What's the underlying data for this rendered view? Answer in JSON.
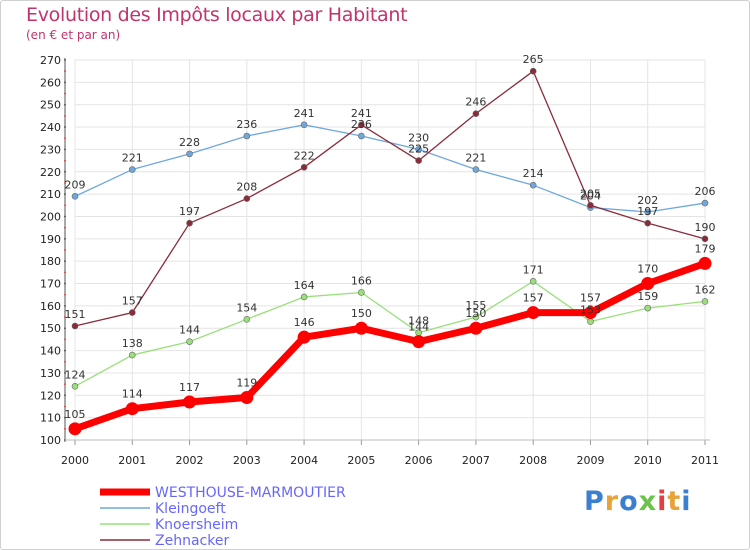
{
  "title": "Evolution des Impôts locaux par Habitant",
  "subtitle": "(en € et par an)",
  "logo": "Proxiti",
  "chart_data": {
    "type": "line",
    "x": [
      "2000",
      "2001",
      "2002",
      "2003",
      "2004",
      "2005",
      "2006",
      "2007",
      "2008",
      "2009",
      "2010",
      "2011"
    ],
    "ylim": [
      100,
      270
    ],
    "yticks": [
      100,
      110,
      120,
      130,
      140,
      150,
      160,
      170,
      180,
      190,
      200,
      210,
      220,
      230,
      240,
      250,
      260,
      270
    ],
    "grid": true,
    "legend_position": "bottom-left",
    "series": [
      {
        "name": "WESTHOUSE-MARMOUTIER",
        "color": "#ff0000",
        "label_color": "#6666ff",
        "values": [
          105,
          114,
          117,
          119,
          146,
          150,
          144,
          150,
          157,
          157,
          170,
          179
        ]
      },
      {
        "name": "Kleingoeft",
        "color": "#6fa8dc",
        "label_color": "#6666ff",
        "values": [
          209,
          221,
          228,
          236,
          241,
          236,
          230,
          221,
          214,
          204,
          202,
          206
        ]
      },
      {
        "name": "Knoersheim",
        "color": "#99e07a",
        "label_color": "#6666ff",
        "values": [
          124,
          138,
          144,
          154,
          164,
          166,
          148,
          155,
          171,
          153,
          159,
          162
        ]
      },
      {
        "name": "Zehnacker",
        "color": "#8b2b3a",
        "label_color": "#6666ff",
        "values": [
          151,
          157,
          197,
          208,
          222,
          241,
          225,
          246,
          265,
          205,
          197,
          190
        ]
      }
    ]
  }
}
